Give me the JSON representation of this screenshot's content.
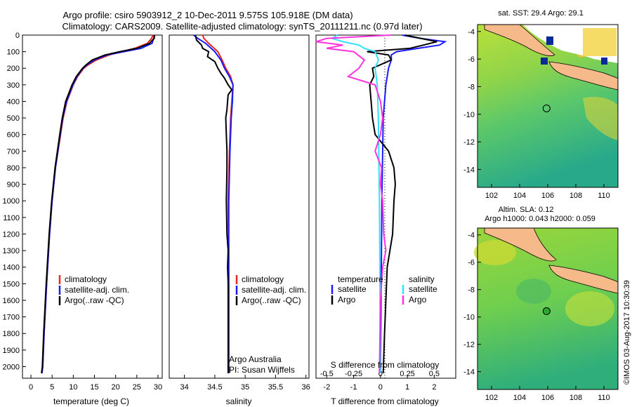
{
  "header": {
    "line1": "Argo profile: csiro 5903912_2 10-Dec-2011 9.575S 105.918E (DM data)",
    "line2": "Climatology: CARS2009. Satellite-adjusted climatology: synTS_20111211.nc (0.97d later)"
  },
  "colors": {
    "climatology": "#e8281e",
    "satellite": "#1a1aff",
    "argo": "#000000",
    "sat_salinity": "#33e0ff",
    "argo_salinity": "#ff33dd",
    "land": "#f5b98a"
  },
  "chart_data": [
    {
      "type": "line",
      "title": "",
      "xlabel": "temperature (deg C)",
      "ylabel": "",
      "xlim": [
        -2,
        31
      ],
      "ylim": [
        2070,
        0
      ],
      "xticks": [
        "0",
        "5",
        "10",
        "15",
        "20",
        "25",
        "30"
      ],
      "yticks": [
        "0",
        "100",
        "200",
        "300",
        "400",
        "500",
        "600",
        "700",
        "800",
        "900",
        "1000",
        "1100",
        "1200",
        "1300",
        "1400",
        "1500",
        "1600",
        "1700",
        "1800",
        "1900",
        "2000"
      ],
      "legend": [
        "climatology",
        "satellite-adj. clim.",
        "Argo(..raw -QC)"
      ],
      "legend_position": "lower-center",
      "series": [
        {
          "name": "climatology",
          "depth": [
            0,
            20,
            50,
            80,
            100,
            120,
            150,
            180,
            200,
            250,
            300,
            400,
            500,
            600,
            800,
            1000,
            1200,
            1500,
            1800,
            2000,
            2040
          ],
          "values": [
            28.8,
            28.5,
            27.5,
            24.5,
            21.5,
            18.5,
            15.5,
            13.5,
            12.5,
            11.0,
            10.0,
            8.5,
            7.6,
            7.0,
            5.8,
            5.0,
            4.4,
            3.7,
            3.1,
            2.8,
            2.6
          ]
        },
        {
          "name": "satellite-adj. clim.",
          "depth": [
            0,
            20,
            50,
            80,
            100,
            120,
            150,
            180,
            200,
            250,
            300,
            400,
            500,
            600,
            800,
            1000,
            1200,
            1500,
            1800,
            2000,
            2040
          ],
          "values": [
            29.1,
            29.0,
            28.6,
            26.0,
            22.0,
            18.0,
            15.0,
            13.2,
            12.3,
            10.9,
            9.9,
            8.4,
            7.5,
            6.9,
            5.8,
            5.0,
            4.4,
            3.7,
            3.1,
            2.8,
            2.6
          ]
        },
        {
          "name": "Argo(..raw -QC)",
          "depth": [
            0,
            20,
            50,
            80,
            100,
            120,
            150,
            180,
            200,
            250,
            300,
            400,
            500,
            600,
            800,
            1000,
            1200,
            1500,
            1800,
            2000,
            2040
          ],
          "values": [
            29.2,
            29.1,
            28.0,
            25.0,
            21.0,
            17.5,
            14.5,
            13.0,
            12.2,
            10.7,
            9.7,
            8.2,
            7.4,
            6.8,
            5.7,
            4.9,
            4.3,
            3.6,
            3.0,
            2.7,
            2.5
          ]
        }
      ]
    },
    {
      "type": "line",
      "xlabel": "salinity",
      "xlim": [
        33.75,
        36.05
      ],
      "ylim": [
        2070,
        0
      ],
      "xticks": [
        "34",
        "34.5",
        "35",
        "35.5",
        "36"
      ],
      "legend": [
        "climatology",
        "satellite-adj. clim.",
        "Argo(..raw -QC)"
      ],
      "legend_position": "lower-center",
      "annotations": [
        "Argo Australia",
        "PI: Susan Wijffels"
      ],
      "series": [
        {
          "name": "climatology",
          "depth": [
            0,
            20,
            50,
            100,
            150,
            200,
            250,
            300,
            400,
            500,
            700,
            1000,
            1500,
            2000,
            2040
          ],
          "values": [
            34.3,
            34.32,
            34.4,
            34.55,
            34.62,
            34.68,
            34.76,
            34.8,
            34.78,
            34.76,
            34.74,
            34.72,
            34.73,
            34.73,
            34.73
          ]
        },
        {
          "name": "satellite-adj. clim.",
          "depth": [
            0,
            20,
            50,
            100,
            150,
            200,
            250,
            300,
            400,
            500,
            700,
            1000,
            1500,
            2000,
            2040
          ],
          "values": [
            34.15,
            34.22,
            34.35,
            34.5,
            34.6,
            34.66,
            34.74,
            34.8,
            34.79,
            34.77,
            34.75,
            34.73,
            34.73,
            34.73,
            34.73
          ]
        },
        {
          "name": "Argo(..raw -QC)",
          "depth": [
            0,
            30,
            60,
            80,
            100,
            130,
            160,
            200,
            230,
            260,
            300,
            330,
            360,
            400,
            450,
            500,
            600,
            700,
            800,
            1000,
            1200,
            1300,
            1400,
            1500,
            2000,
            2040
          ],
          "values": [
            34.18,
            34.2,
            34.28,
            34.3,
            34.4,
            34.38,
            34.5,
            34.55,
            34.6,
            34.66,
            34.72,
            34.78,
            34.72,
            34.71,
            34.7,
            34.68,
            34.69,
            34.7,
            34.7,
            34.69,
            34.7,
            34.72,
            34.71,
            34.72,
            34.72,
            34.72
          ]
        }
      ]
    },
    {
      "type": "line",
      "xlabel": "T difference from climatology",
      "xlabel_top": "S difference from climatology",
      "xlim": [
        -2.4,
        2.8
      ],
      "ylim": [
        2070,
        0
      ],
      "xticks": [
        "-2",
        "-1",
        "0",
        "1",
        "2"
      ],
      "xticks_s": [
        "-0.5",
        "-0.25",
        "0",
        "0.25",
        "0.5"
      ],
      "legend_left_title": "temperature",
      "legend_right_title": "salinity",
      "legend": [
        "satellite",
        "Argo",
        "satellite",
        "Argo"
      ],
      "series": [
        {
          "name": "temperature satellite",
          "depth": [
            0,
            20,
            40,
            60,
            80,
            100,
            120,
            150,
            200,
            300,
            500,
            1000,
            2040
          ],
          "values": [
            0.8,
            1.5,
            2.4,
            2.2,
            1.4,
            0.6,
            0.4,
            0.4,
            0.3,
            0.2,
            0.1,
            0.05,
            0.0
          ]
        },
        {
          "name": "temperature Argo",
          "depth": [
            0,
            40,
            60,
            80,
            100,
            120,
            150,
            200,
            250,
            300,
            400,
            500,
            600,
            700,
            800,
            900,
            1000,
            1200,
            1400,
            1600,
            1800,
            2040
          ],
          "values": [
            0.9,
            2.1,
            1.6,
            1.1,
            -0.5,
            0.3,
            0.4,
            -0.3,
            -0.25,
            -0.4,
            -0.35,
            -0.3,
            -0.2,
            0.3,
            0.5,
            0.55,
            0.5,
            0.45,
            0.25,
            0.2,
            0.15,
            0.1
          ]
        },
        {
          "name": "salinity satellite",
          "depth": [
            0,
            20,
            40,
            60,
            80,
            100,
            150,
            200,
            300,
            500,
            1000,
            2040
          ],
          "values": [
            -0.4,
            -0.45,
            -0.35,
            -0.2,
            -0.15,
            -0.05,
            -0.02,
            -0.05,
            -0.03,
            -0.02,
            -0.01,
            0.0
          ]
        },
        {
          "name": "salinity Argo",
          "depth": [
            0,
            20,
            40,
            60,
            80,
            100,
            150,
            200,
            250,
            300,
            400,
            500,
            600,
            700,
            800,
            900,
            1000,
            1200,
            1300,
            1400,
            1600,
            2040
          ],
          "values": [
            0.1,
            -0.5,
            -0.6,
            -0.35,
            -0.5,
            -0.25,
            -0.15,
            -0.2,
            -0.3,
            -0.05,
            0.0,
            0.02,
            0.0,
            -0.05,
            0.01,
            0.0,
            0.02,
            0.03,
            0.05,
            0.02,
            0.0,
            -0.01
          ]
        }
      ]
    },
    {
      "type": "heatmap",
      "title": "sat. SST: 29.4  Argo: 29.1",
      "xticks": [
        "102",
        "104",
        "106",
        "108",
        "110"
      ],
      "yticks": [
        "-4",
        "-6",
        "-8",
        "-10",
        "-12",
        "-14"
      ],
      "xlim": [
        101,
        111
      ],
      "ylim": [
        -15.3,
        -3.5
      ],
      "marker": {
        "lon": 105.918,
        "lat": -9.575
      }
    },
    {
      "type": "heatmap",
      "title": "Altim. SLA: 0.12",
      "subtitle": "Argo h1000: 0.043 h2000: 0.059",
      "xticks": [
        "102",
        "104",
        "106",
        "108",
        "110"
      ],
      "yticks": [
        "-4",
        "-6",
        "-8",
        "-10",
        "-12",
        "-14"
      ],
      "xlim": [
        101,
        111
      ],
      "ylim": [
        -15.3,
        -3.5
      ],
      "marker": {
        "lon": 105.918,
        "lat": -9.575
      }
    }
  ],
  "credit": "©IMOS 03-Aug-2017 10:30:39"
}
